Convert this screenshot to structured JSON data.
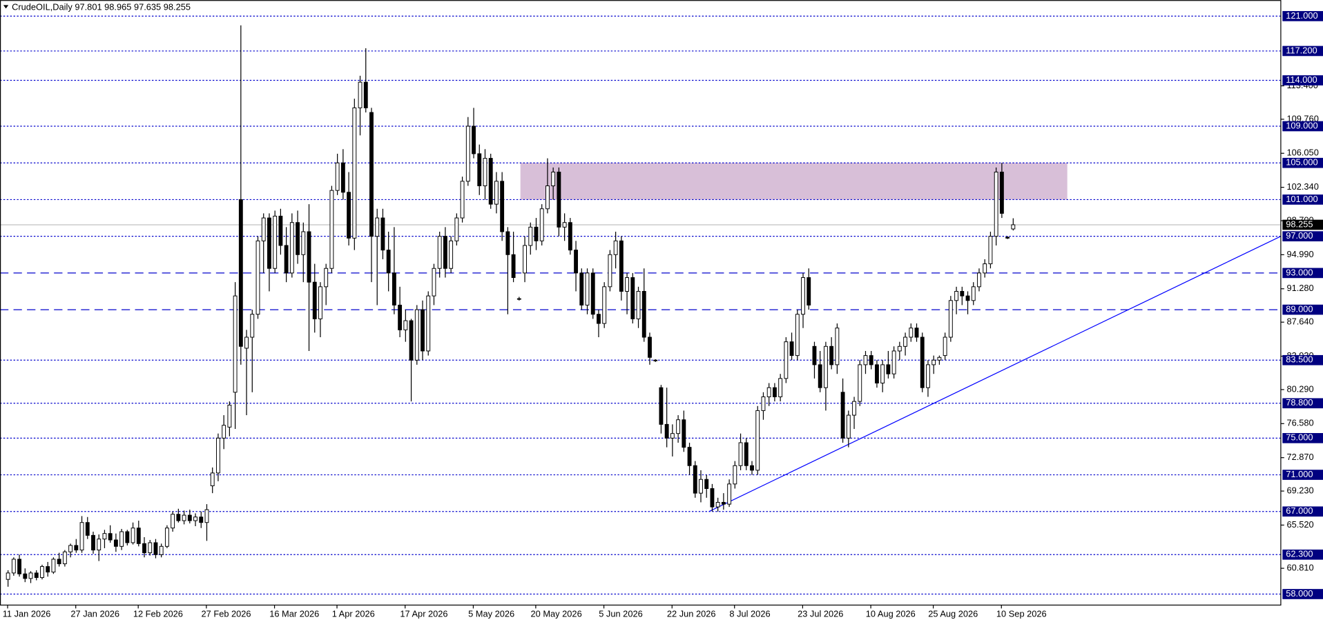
{
  "chart_data": {
    "type": "candlestick",
    "title": "CrudeOIL,Daily  97.801 98.965 97.635 98.255",
    "xlim": [
      -1.34,
      224.2
    ],
    "ylim": [
      56.8,
      122.75
    ],
    "up_color": "#ffffff",
    "down_color": "#000000",
    "level_color": "#0000cc",
    "ohlc": [
      [
        59.6,
        60.6,
        58.8,
        60.3
      ],
      [
        60.3,
        62.0,
        60.0,
        61.8
      ],
      [
        61.8,
        62.3,
        59.9,
        60.2
      ],
      [
        60.2,
        60.8,
        59.3,
        59.7
      ],
      [
        59.7,
        60.5,
        59.2,
        60.3
      ],
      [
        60.3,
        60.6,
        59.5,
        59.8
      ],
      [
        59.8,
        61.2,
        59.6,
        61.0
      ],
      [
        61.0,
        61.5,
        59.9,
        60.4
      ],
      [
        60.4,
        62.0,
        60.2,
        61.8
      ],
      [
        61.8,
        62.5,
        61.0,
        61.3
      ],
      [
        61.3,
        62.8,
        61.0,
        62.6
      ],
      [
        62.6,
        63.5,
        62.0,
        63.3
      ],
      [
        63.3,
        64.0,
        62.5,
        62.8
      ],
      [
        62.8,
        66.5,
        62.5,
        65.8
      ],
      [
        65.8,
        66.4,
        64.0,
        64.4
      ],
      [
        64.4,
        64.8,
        62.4,
        62.8
      ],
      [
        62.8,
        64.5,
        61.6,
        64.0
      ],
      [
        64.0,
        65.0,
        63.0,
        64.6
      ],
      [
        64.6,
        65.5,
        63.6,
        63.9
      ],
      [
        63.9,
        64.6,
        62.6,
        63.2
      ],
      [
        63.2,
        65.1,
        62.8,
        64.8
      ],
      [
        64.8,
        65.0,
        63.3,
        63.6
      ],
      [
        63.6,
        65.8,
        63.4,
        65.2
      ],
      [
        65.2,
        66.0,
        63.2,
        63.5
      ],
      [
        63.5,
        64.2,
        62.0,
        62.5
      ],
      [
        62.5,
        63.9,
        62.2,
        63.6
      ],
      [
        63.6,
        64.0,
        61.9,
        62.3
      ],
      [
        62.3,
        63.5,
        62.0,
        63.2
      ],
      [
        63.2,
        65.5,
        63.0,
        65.2
      ],
      [
        65.2,
        67.0,
        64.8,
        66.7
      ],
      [
        66.7,
        67.3,
        65.8,
        66.0
      ],
      [
        66.0,
        67.1,
        65.6,
        66.6
      ],
      [
        66.6,
        67.2,
        65.7,
        66.0
      ],
      [
        66.0,
        66.8,
        65.4,
        66.4
      ],
      [
        66.4,
        67.0,
        65.2,
        65.8
      ],
      [
        65.8,
        67.8,
        63.8,
        67.2
      ],
      [
        69.8,
        71.8,
        69.0,
        71.2
      ],
      [
        71.2,
        75.5,
        70.3,
        75.0
      ],
      [
        75.0,
        77.5,
        73.8,
        76.4
      ],
      [
        76.2,
        79.0,
        75.2,
        78.6
      ],
      [
        80.0,
        92.0,
        76.0,
        90.5
      ],
      [
        101.0,
        120.0,
        83.0,
        85.0
      ],
      [
        84.8,
        86.8,
        77.5,
        86.0
      ],
      [
        86.0,
        89.0,
        80.0,
        88.5
      ],
      [
        88.5,
        97.0,
        88.0,
        96.5
      ],
      [
        96.5,
        99.5,
        93.0,
        99.0
      ],
      [
        99.0,
        99.5,
        91.0,
        93.5
      ],
      [
        93.5,
        99.8,
        93.0,
        99.2
      ],
      [
        99.2,
        100.0,
        95.0,
        96.0
      ],
      [
        96.0,
        98.0,
        92.0,
        93.0
      ],
      [
        93.0,
        99.5,
        92.5,
        98.5
      ],
      [
        98.5,
        99.8,
        94.0,
        95.0
      ],
      [
        95.0,
        98.5,
        92.0,
        97.5
      ],
      [
        97.5,
        100.5,
        84.5,
        92.0
      ],
      [
        92.0,
        94.0,
        86.5,
        88.0
      ],
      [
        88.0,
        92.0,
        86.0,
        91.5
      ],
      [
        91.5,
        94.0,
        89.5,
        93.5
      ],
      [
        93.5,
        102.5,
        93.0,
        102.0
      ],
      [
        102.0,
        106.0,
        101.5,
        105.0
      ],
      [
        105.0,
        106.5,
        101.0,
        101.8
      ],
      [
        101.8,
        104.0,
        96.0,
        96.8
      ],
      [
        96.8,
        112.0,
        95.5,
        111.0
      ],
      [
        111.0,
        114.5,
        108.0,
        113.8
      ],
      [
        113.8,
        117.5,
        110.5,
        111.0
      ],
      [
        110.5,
        111.0,
        92.0,
        97.0
      ],
      [
        97.0,
        100.0,
        89.5,
        99.0
      ],
      [
        99.0,
        100.0,
        94.5,
        95.5
      ],
      [
        95.5,
        97.5,
        91.0,
        93.0
      ],
      [
        93.0,
        98.0,
        88.5,
        89.5
      ],
      [
        89.5,
        91.5,
        86.0,
        86.8
      ],
      [
        86.8,
        89.0,
        85.5,
        87.8
      ],
      [
        87.8,
        88.0,
        79.0,
        83.5
      ],
      [
        83.5,
        89.5,
        83.0,
        89.0
      ],
      [
        89.0,
        90.0,
        83.5,
        84.5
      ],
      [
        84.5,
        91.0,
        84.0,
        90.5
      ],
      [
        90.5,
        94.0,
        89.5,
        93.5
      ],
      [
        93.5,
        97.5,
        92.5,
        97.0
      ],
      [
        97.0,
        98.0,
        92.5,
        93.5
      ],
      [
        93.5,
        97.0,
        93.0,
        96.5
      ],
      [
        96.5,
        99.5,
        96.0,
        99.0
      ],
      [
        99.0,
        103.5,
        98.5,
        103.0
      ],
      [
        103.0,
        110.0,
        102.5,
        109.0
      ],
      [
        109.0,
        111.0,
        105.5,
        106.0
      ],
      [
        106.0,
        107.0,
        101.5,
        102.5
      ],
      [
        102.5,
        106.5,
        101.0,
        105.5
      ],
      [
        105.5,
        106.0,
        100.0,
        100.5
      ],
      [
        100.5,
        104.0,
        99.5,
        103.0
      ],
      [
        103.0,
        104.0,
        96.5,
        97.5
      ],
      [
        97.5,
        98.0,
        88.5,
        95.0
      ],
      [
        95.0,
        97.5,
        92.0,
        92.5
      ],
      [
        90.2,
        90.4,
        90.0,
        90.2
      ],
      [
        93.0,
        97.0,
        92.0,
        96.0
      ],
      [
        96.0,
        98.5,
        95.0,
        98.0
      ],
      [
        98.0,
        99.0,
        95.5,
        96.5
      ],
      [
        96.5,
        100.5,
        96.0,
        100.0
      ],
      [
        100.0,
        105.5,
        99.5,
        102.5
      ],
      [
        102.5,
        104.5,
        101.0,
        104.0
      ],
      [
        104.0,
        104.5,
        97.0,
        98.0
      ],
      [
        98.0,
        99.5,
        96.5,
        98.5
      ],
      [
        98.5,
        99.0,
        95.0,
        95.5
      ],
      [
        95.5,
        96.5,
        91.0,
        93.0
      ],
      [
        93.0,
        93.5,
        89.0,
        89.5
      ],
      [
        89.5,
        93.5,
        88.5,
        93.0
      ],
      [
        93.0,
        93.5,
        88.0,
        88.5
      ],
      [
        88.5,
        89.0,
        86.0,
        87.5
      ],
      [
        87.5,
        92.0,
        87.0,
        91.5
      ],
      [
        91.5,
        95.5,
        91.0,
        95.0
      ],
      [
        95.0,
        97.5,
        93.5,
        96.5
      ],
      [
        96.5,
        97.0,
        90.0,
        91.0
      ],
      [
        91.0,
        93.0,
        88.5,
        92.5
      ],
      [
        92.5,
        93.0,
        87.5,
        88.0
      ],
      [
        88.0,
        91.5,
        87.0,
        91.0
      ],
      [
        91.0,
        93.5,
        85.5,
        86.0
      ],
      [
        86.0,
        86.5,
        83.0,
        83.8
      ],
      [
        83.5,
        83.6,
        83.3,
        83.5
      ],
      [
        80.5,
        80.8,
        75.5,
        76.5
      ],
      [
        76.5,
        80.5,
        74.0,
        75.0
      ],
      [
        75.0,
        76.5,
        73.0,
        75.5
      ],
      [
        75.5,
        77.5,
        74.5,
        77.0
      ],
      [
        77.0,
        78.0,
        73.5,
        74.0
      ],
      [
        74.0,
        74.5,
        71.0,
        72.0
      ],
      [
        72.0,
        72.5,
        68.5,
        69.0
      ],
      [
        69.0,
        71.5,
        68.0,
        70.5
      ],
      [
        70.5,
        71.0,
        68.5,
        69.5
      ],
      [
        69.5,
        70.0,
        67.0,
        67.5
      ],
      [
        67.5,
        68.5,
        67.0,
        68.0
      ],
      [
        68.0,
        69.0,
        67.2,
        67.8
      ],
      [
        67.8,
        70.5,
        67.5,
        70.0
      ],
      [
        70.0,
        72.5,
        69.5,
        72.0
      ],
      [
        72.0,
        75.5,
        71.5,
        74.5
      ],
      [
        74.5,
        75.0,
        71.5,
        72.0
      ],
      [
        72.0,
        72.5,
        71.0,
        71.5
      ],
      [
        71.5,
        78.5,
        71.0,
        78.0
      ],
      [
        78.0,
        80.0,
        77.0,
        79.5
      ],
      [
        79.5,
        81.0,
        78.5,
        80.5
      ],
      [
        80.5,
        81.0,
        79.0,
        79.5
      ],
      [
        79.5,
        82.0,
        79.0,
        81.5
      ],
      [
        81.5,
        86.0,
        81.0,
        85.5
      ],
      [
        85.5,
        86.5,
        83.5,
        84.0
      ],
      [
        84.0,
        89.0,
        83.5,
        88.5
      ],
      [
        88.5,
        93.0,
        87.0,
        92.5
      ],
      [
        92.5,
        93.5,
        89.0,
        89.5
      ],
      [
        85.0,
        85.5,
        81.5,
        83.0
      ],
      [
        83.0,
        84.5,
        80.0,
        80.5
      ],
      [
        80.5,
        85.5,
        78.0,
        85.0
      ],
      [
        85.0,
        86.0,
        82.5,
        83.0
      ],
      [
        83.0,
        87.5,
        82.0,
        87.0
      ],
      [
        80.0,
        81.5,
        74.5,
        75.0
      ],
      [
        75.0,
        78.0,
        74.0,
        77.5
      ],
      [
        77.5,
        79.5,
        76.0,
        79.0
      ],
      [
        79.0,
        83.5,
        78.5,
        83.0
      ],
      [
        83.0,
        84.5,
        82.0,
        84.0
      ],
      [
        84.0,
        84.5,
        82.5,
        83.0
      ],
      [
        83.0,
        83.5,
        80.5,
        81.0
      ],
      [
        81.0,
        83.5,
        80.0,
        83.0
      ],
      [
        83.0,
        84.5,
        81.5,
        82.0
      ],
      [
        82.0,
        85.0,
        81.5,
        84.5
      ],
      [
        84.5,
        85.5,
        83.5,
        85.0
      ],
      [
        85.0,
        86.5,
        84.0,
        86.0
      ],
      [
        86.0,
        87.5,
        85.5,
        87.0
      ],
      [
        87.0,
        87.5,
        85.5,
        86.0
      ],
      [
        86.0,
        86.5,
        80.0,
        80.5
      ],
      [
        80.5,
        83.5,
        79.5,
        83.0
      ],
      [
        83.0,
        84.0,
        82.0,
        83.5
      ],
      [
        83.5,
        84.0,
        83.0,
        83.8
      ],
      [
        84.0,
        86.5,
        83.5,
        86.0
      ],
      [
        86.0,
        90.5,
        85.5,
        90.0
      ],
      [
        90.0,
        91.5,
        88.5,
        91.0
      ],
      [
        91.0,
        91.5,
        89.5,
        90.5
      ],
      [
        90.5,
        91.0,
        88.5,
        90.0
      ],
      [
        90.0,
        92.0,
        89.5,
        91.5
      ],
      [
        91.5,
        93.5,
        91.0,
        93.0
      ],
      [
        93.0,
        94.5,
        92.5,
        94.0
      ],
      [
        94.0,
        97.5,
        93.5,
        97.0
      ],
      [
        97.0,
        104.5,
        96.0,
        104.0
      ],
      [
        104.0,
        105.0,
        99.0,
        99.5
      ],
      [
        96.9,
        97.0,
        96.7,
        96.8
      ],
      [
        97.801,
        98.965,
        97.635,
        98.255
      ]
    ],
    "xticks": [
      {
        "value": 0,
        "label": "11 Jan 2026"
      },
      {
        "value": 12,
        "label": "27 Jan 2026"
      },
      {
        "value": 23,
        "label": "12 Feb 2026"
      },
      {
        "value": 35,
        "label": "27 Feb 2026"
      },
      {
        "value": 47,
        "label": "16 Mar 2026"
      },
      {
        "value": 58,
        "label": "1 Apr 2026"
      },
      {
        "value": 70,
        "label": "17 Apr 2026"
      },
      {
        "value": 82,
        "label": "5 May 2026"
      },
      {
        "value": 93,
        "label": "20 May 2026"
      },
      {
        "value": 105,
        "label": "5 Jun 2026"
      },
      {
        "value": 117,
        "label": "22 Jun 2026"
      },
      {
        "value": 128,
        "label": "8 Jul 2026"
      },
      {
        "value": 140,
        "label": "23 Jul 2026"
      },
      {
        "value": 152,
        "label": "10 Aug 2026"
      },
      {
        "value": 163,
        "label": "25 Aug 2026"
      },
      {
        "value": 175,
        "label": "10 Sep 2026"
      }
    ],
    "yticks": [
      {
        "value": 113.4,
        "label": "113.400"
      },
      {
        "value": 109.76,
        "label": "109.760"
      },
      {
        "value": 106.05,
        "label": "106.050"
      },
      {
        "value": 102.34,
        "label": "102.340"
      },
      {
        "value": 98.7,
        "label": "98.700"
      },
      {
        "value": 94.99,
        "label": "94.990"
      },
      {
        "value": 91.28,
        "label": "91.280"
      },
      {
        "value": 87.64,
        "label": "87.640"
      },
      {
        "value": 83.93,
        "label": "83.930"
      },
      {
        "value": 80.29,
        "label": "80.290"
      },
      {
        "value": 76.58,
        "label": "76.580"
      },
      {
        "value": 72.87,
        "label": "72.870"
      },
      {
        "value": 69.23,
        "label": "69.230"
      },
      {
        "value": 65.52,
        "label": "65.520"
      },
      {
        "value": 60.81,
        "label": "60.810"
      }
    ],
    "levels": [
      {
        "value": 121,
        "label": "121.000",
        "style": "dotted"
      },
      {
        "value": 117.2,
        "label": "117.200",
        "style": "dotted"
      },
      {
        "value": 114,
        "label": "114.000",
        "style": "dotted"
      },
      {
        "value": 109,
        "label": "109.000",
        "style": "dotted"
      },
      {
        "value": 105,
        "label": "105.000",
        "style": "dotted"
      },
      {
        "value": 101,
        "label": "101.000",
        "style": "dotted"
      },
      {
        "value": 97,
        "label": "97.000",
        "style": "dotted"
      },
      {
        "value": 93,
        "label": "93.000",
        "style": "dashed"
      },
      {
        "value": 89,
        "label": "89.000",
        "style": "dashed"
      },
      {
        "value": 83.5,
        "label": "83.500",
        "style": "dotted"
      },
      {
        "value": 78.8,
        "label": "78.800",
        "style": "dotted"
      },
      {
        "value": 75,
        "label": "75.000",
        "style": "dotted"
      },
      {
        "value": 71,
        "label": "71.000",
        "style": "dotted"
      },
      {
        "value": 67,
        "label": "67.000",
        "style": "dotted"
      },
      {
        "value": 62.3,
        "label": "62.300",
        "style": "dotted"
      },
      {
        "value": 58,
        "label": "58.000",
        "style": "dotted"
      }
    ],
    "current_price": 98.255,
    "zone": {
      "x": [
        90.3,
        186.6
      ],
      "y": [
        101,
        105
      ],
      "color": "#d8bfd8"
    },
    "trendline": {
      "x": [
        123.5,
        224.2
      ],
      "y": [
        67.0,
        97.0
      ],
      "color": "#0000ff"
    }
  }
}
